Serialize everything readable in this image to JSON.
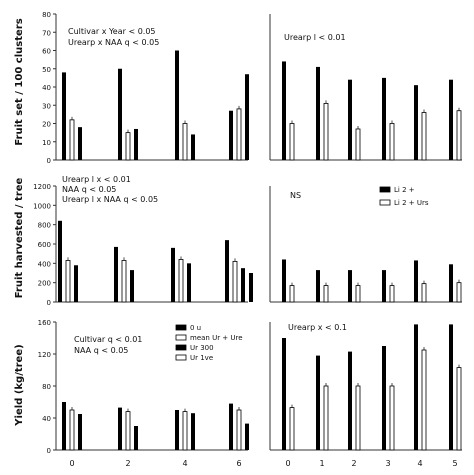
{
  "figure": {
    "ylabels": [
      "Fruit set / 100 clusters",
      "Fruit harvested / tree",
      "Yield (kg/tree)"
    ],
    "xticks_left": [
      "0",
      "2",
      "4",
      "6"
    ],
    "xticks_right": [
      "0",
      "1",
      "2",
      "3",
      "4",
      "5"
    ]
  },
  "chart_data": [
    {
      "type": "bar",
      "panel": "A-left",
      "categories": [
        "0",
        "2",
        "4",
        "6"
      ],
      "ylim": [
        0,
        80
      ],
      "yticks": [
        "0",
        "10",
        "20",
        "30",
        "40",
        "50",
        "60",
        "70",
        "80"
      ],
      "annotations": [
        "Cultivar x Year < 0.05",
        "Urearp x NAA q < 0.05"
      ],
      "series": [
        {
          "values": [
            48,
            50,
            60,
            27
          ],
          "style": "solid"
        },
        {
          "values": [
            22,
            15,
            20,
            28
          ],
          "style": "outline"
        },
        {
          "values": [
            18,
            17,
            14,
            47
          ],
          "style": "solid"
        }
      ]
    },
    {
      "type": "bar",
      "panel": "A-right",
      "categories": [
        "0",
        "1",
        "2",
        "3",
        "4",
        "5"
      ],
      "ylim": [
        0,
        80
      ],
      "annotations": [
        "Urearp l < 0.01"
      ],
      "series": [
        {
          "values": [
            54,
            51,
            44,
            45,
            41,
            44
          ],
          "style": "solid"
        },
        {
          "values": [
            20,
            31,
            17,
            20,
            26,
            27
          ],
          "style": "outline"
        }
      ]
    },
    {
      "type": "bar",
      "panel": "B-left",
      "categories": [
        "0",
        "2",
        "4",
        "6"
      ],
      "ylim": [
        0,
        1200
      ],
      "yticks": [
        "0",
        "200",
        "400",
        "600",
        "800",
        "1000",
        "1200"
      ],
      "annotations": [
        "Urearp l x < 0.01",
        "NAA q < 0.05",
        "Urearp l x NAA q < 0.05"
      ],
      "series": [
        {
          "values": [
            840,
            570,
            560,
            640
          ],
          "style": "solid"
        },
        {
          "values": [
            430,
            430,
            440,
            420
          ],
          "style": "outline"
        },
        {
          "values": [
            380,
            330,
            400,
            350
          ],
          "style": "solid"
        },
        {
          "values": [
            0,
            0,
            0,
            300
          ],
          "style": "solid"
        }
      ]
    },
    {
      "type": "bar",
      "panel": "B-right",
      "categories": [
        "0",
        "1",
        "2",
        "3",
        "4",
        "5"
      ],
      "ylim": [
        0,
        1200
      ],
      "annotations": [
        "NS"
      ],
      "legend": [
        "Li 2 +",
        "Li 2 + Urs"
      ],
      "series": [
        {
          "values": [
            440,
            330,
            330,
            330,
            430,
            390
          ],
          "style": "solid"
        },
        {
          "values": [
            170,
            170,
            170,
            170,
            190,
            200
          ],
          "style": "outline"
        }
      ]
    },
    {
      "type": "bar",
      "panel": "C-left",
      "categories": [
        "0",
        "2",
        "4",
        "6"
      ],
      "ylim": [
        0,
        160
      ],
      "yticks": [
        "0",
        "40",
        "80",
        "120",
        "160"
      ],
      "annotations": [
        "Cultivar q < 0.01",
        "NAA q < 0.05"
      ],
      "legend": [
        "0 u",
        "mean Ur + Ure",
        "Ur 300",
        "Ur 1ve"
      ],
      "series": [
        {
          "values": [
            60,
            53,
            50,
            58
          ],
          "style": "solid"
        },
        {
          "values": [
            50,
            48,
            48,
            50
          ],
          "style": "outline"
        },
        {
          "values": [
            45,
            30,
            46,
            33
          ],
          "style": "solid"
        }
      ]
    },
    {
      "type": "bar",
      "panel": "C-right",
      "categories": [
        "0",
        "1",
        "2",
        "3",
        "4",
        "5"
      ],
      "ylim": [
        0,
        160
      ],
      "annotations": [
        "Urearp x < 0.1"
      ],
      "series": [
        {
          "values": [
            140,
            118,
            123,
            130,
            157,
            157
          ],
          "style": "solid"
        },
        {
          "values": [
            53,
            80,
            80,
            80,
            125,
            103
          ],
          "style": "outline"
        }
      ]
    }
  ]
}
